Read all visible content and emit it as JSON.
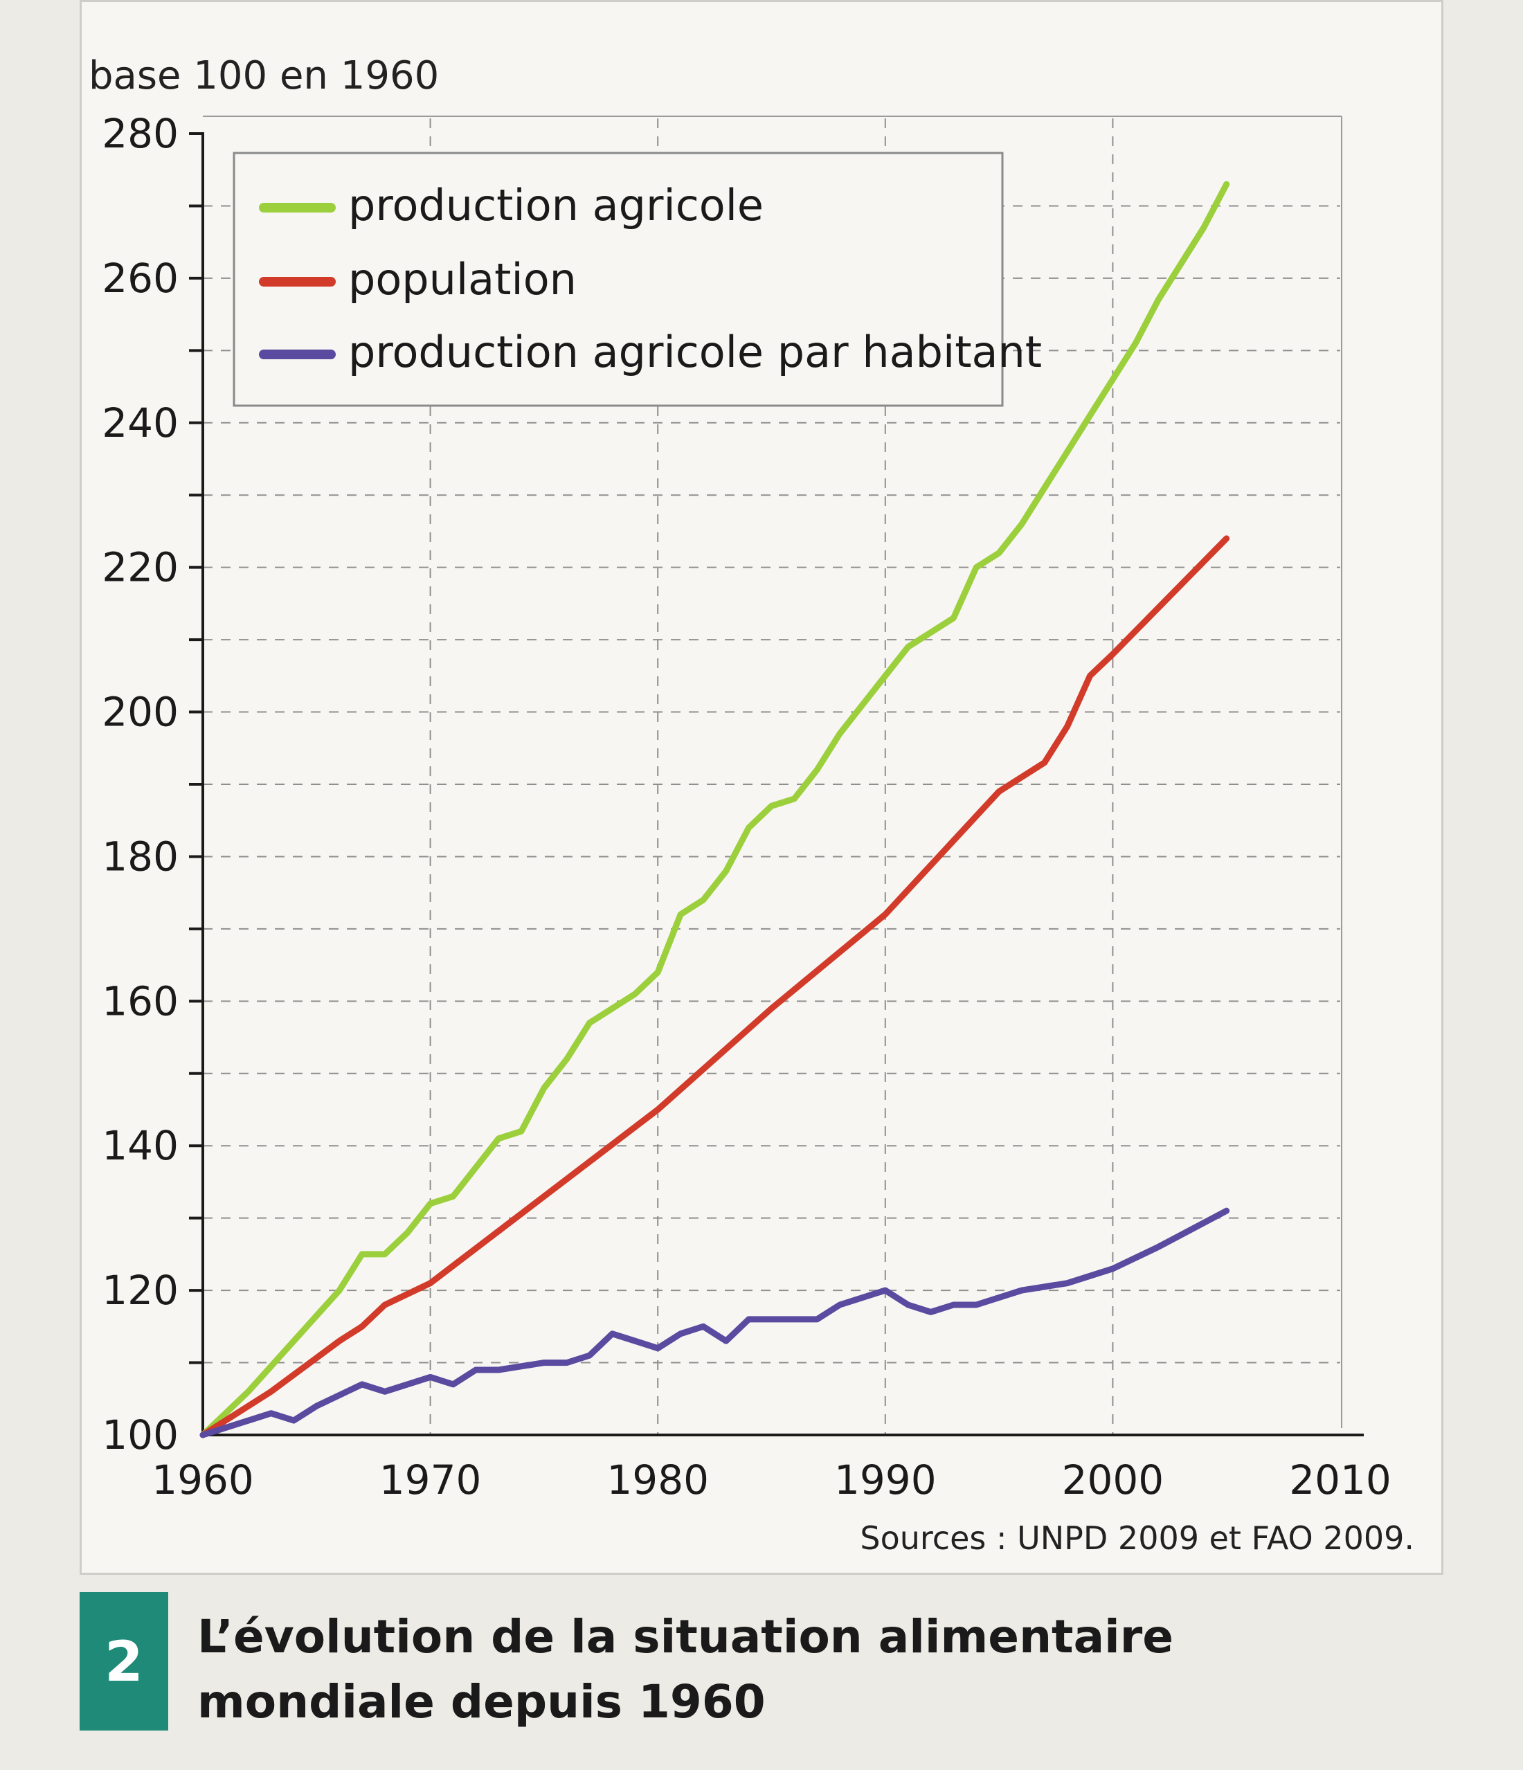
{
  "chart_data": {
    "type": "line",
    "y_unit_label": "base 100 en 1960",
    "xlim": [
      1960,
      2010
    ],
    "ylim": [
      100,
      280
    ],
    "x_ticks": [
      1960,
      1970,
      1980,
      1990,
      2000,
      2010
    ],
    "y_ticks": [
      100,
      120,
      140,
      160,
      180,
      200,
      220,
      240,
      260,
      280
    ],
    "grid": true,
    "legend_position": "top-left",
    "series": [
      {
        "name": "production agricole",
        "color": "#9ccf3c",
        "points": [
          [
            1960,
            100
          ],
          [
            1962,
            106
          ],
          [
            1964,
            113
          ],
          [
            1966,
            120
          ],
          [
            1967,
            125
          ],
          [
            1968,
            125
          ],
          [
            1969,
            128
          ],
          [
            1970,
            132
          ],
          [
            1971,
            133
          ],
          [
            1972,
            137
          ],
          [
            1973,
            141
          ],
          [
            1974,
            142
          ],
          [
            1975,
            148
          ],
          [
            1976,
            152
          ],
          [
            1977,
            157
          ],
          [
            1978,
            159
          ],
          [
            1979,
            161
          ],
          [
            1980,
            164
          ],
          [
            1981,
            172
          ],
          [
            1982,
            174
          ],
          [
            1983,
            178
          ],
          [
            1984,
            184
          ],
          [
            1985,
            187
          ],
          [
            1986,
            188
          ],
          [
            1987,
            192
          ],
          [
            1988,
            197
          ],
          [
            1989,
            201
          ],
          [
            1990,
            205
          ],
          [
            1991,
            209
          ],
          [
            1992,
            211
          ],
          [
            1993,
            213
          ],
          [
            1994,
            220
          ],
          [
            1995,
            222
          ],
          [
            1996,
            226
          ],
          [
            1997,
            231
          ],
          [
            1998,
            236
          ],
          [
            1999,
            241
          ],
          [
            2000,
            246
          ],
          [
            2001,
            251
          ],
          [
            2002,
            257
          ],
          [
            2003,
            262
          ],
          [
            2004,
            267
          ],
          [
            2005,
            273
          ]
        ]
      },
      {
        "name": "population",
        "color": "#d23b2a",
        "points": [
          [
            1960,
            100
          ],
          [
            1963,
            106
          ],
          [
            1966,
            113
          ],
          [
            1967,
            115
          ],
          [
            1968,
            118
          ],
          [
            1970,
            121
          ],
          [
            1975,
            133
          ],
          [
            1980,
            145
          ],
          [
            1985,
            159
          ],
          [
            1990,
            172
          ],
          [
            1995,
            189
          ],
          [
            1997,
            193
          ],
          [
            1998,
            198
          ],
          [
            1999,
            205
          ],
          [
            2000,
            208
          ],
          [
            2005,
            224
          ]
        ]
      },
      {
        "name": "production agricole par habitant",
        "color": "#5a4aa0",
        "points": [
          [
            1960,
            100
          ],
          [
            1963,
            103
          ],
          [
            1964,
            102
          ],
          [
            1965,
            104
          ],
          [
            1967,
            107
          ],
          [
            1968,
            106
          ],
          [
            1970,
            108
          ],
          [
            1971,
            107
          ],
          [
            1972,
            109
          ],
          [
            1973,
            109
          ],
          [
            1975,
            110
          ],
          [
            1976,
            110
          ],
          [
            1977,
            111
          ],
          [
            1978,
            114
          ],
          [
            1979,
            113
          ],
          [
            1980,
            112
          ],
          [
            1981,
            114
          ],
          [
            1982,
            115
          ],
          [
            1983,
            113
          ],
          [
            1984,
            116
          ],
          [
            1985,
            116
          ],
          [
            1987,
            116
          ],
          [
            1988,
            118
          ],
          [
            1990,
            120
          ],
          [
            1991,
            118
          ],
          [
            1992,
            117
          ],
          [
            1993,
            118
          ],
          [
            1994,
            118
          ],
          [
            1996,
            120
          ],
          [
            1998,
            121
          ],
          [
            2000,
            123
          ],
          [
            2002,
            126
          ],
          [
            2005,
            131
          ]
        ]
      }
    ],
    "source": "Sources : UNPD 2009 et FAO 2009."
  },
  "caption": {
    "number": "2",
    "title": "L’évolution de la situation alimentaire mondiale depuis 1960"
  }
}
